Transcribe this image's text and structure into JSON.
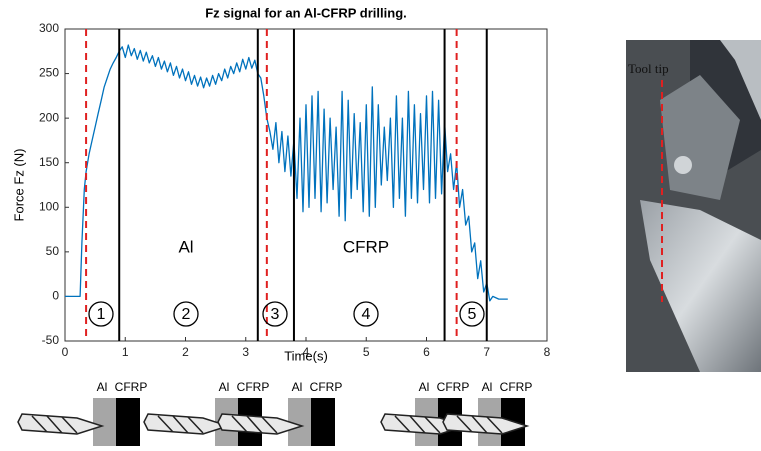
{
  "chart_data": {
    "type": "line",
    "title": "Fz signal for an Al-CFRP drilling.",
    "x_label": "Time(s)",
    "y_label": "Force Fz (N)",
    "color": "#0072bd",
    "xlim": [
      0,
      8
    ],
    "ylim": [
      -50,
      300
    ],
    "xticks": [
      0,
      1,
      2,
      3,
      4,
      5,
      6,
      7,
      8
    ],
    "yticks": [
      -50,
      0,
      50,
      100,
      150,
      200,
      250,
      300
    ],
    "grid": false,
    "x": [
      0,
      0.1,
      0.2,
      0.25,
      0.28,
      0.32,
      0.35,
      0.4,
      0.45,
      0.5,
      0.55,
      0.6,
      0.65,
      0.7,
      0.75,
      0.8,
      0.85,
      0.9,
      0.95,
      1.0,
      1.05,
      1.1,
      1.15,
      1.2,
      1.25,
      1.3,
      1.35,
      1.4,
      1.45,
      1.5,
      1.55,
      1.6,
      1.65,
      1.7,
      1.75,
      1.8,
      1.85,
      1.9,
      1.95,
      2.0,
      2.05,
      2.1,
      2.15,
      2.2,
      2.25,
      2.3,
      2.35,
      2.4,
      2.45,
      2.5,
      2.55,
      2.6,
      2.65,
      2.7,
      2.75,
      2.8,
      2.85,
      2.9,
      2.95,
      3.0,
      3.05,
      3.1,
      3.15,
      3.2,
      3.25,
      3.3,
      3.35,
      3.4,
      3.45,
      3.5,
      3.55,
      3.6,
      3.65,
      3.7,
      3.75,
      3.8,
      3.85,
      3.9,
      3.95,
      4.0,
      4.05,
      4.1,
      4.15,
      4.2,
      4.25,
      4.3,
      4.35,
      4.4,
      4.45,
      4.5,
      4.55,
      4.6,
      4.65,
      4.7,
      4.75,
      4.8,
      4.85,
      4.9,
      4.95,
      5.0,
      5.05,
      5.1,
      5.15,
      5.2,
      5.25,
      5.3,
      5.35,
      5.4,
      5.45,
      5.5,
      5.55,
      5.6,
      5.65,
      5.7,
      5.75,
      5.8,
      5.85,
      5.9,
      5.95,
      6.0,
      6.05,
      6.1,
      6.15,
      6.2,
      6.25,
      6.3,
      6.35,
      6.4,
      6.45,
      6.5,
      6.55,
      6.6,
      6.65,
      6.7,
      6.75,
      6.8,
      6.85,
      6.9,
      6.95,
      7.0,
      7.05,
      7.1,
      7.2,
      7.35
    ],
    "values": [
      0,
      0,
      0,
      0,
      60,
      120,
      140,
      160,
      175,
      190,
      205,
      220,
      235,
      245,
      255,
      262,
      268,
      275,
      280,
      268,
      282,
      270,
      278,
      266,
      276,
      264,
      274,
      262,
      270,
      258,
      268,
      255,
      264,
      252,
      262,
      248,
      258,
      245,
      255,
      242,
      252,
      238,
      248,
      236,
      246,
      234,
      245,
      236,
      248,
      238,
      250,
      242,
      255,
      245,
      258,
      250,
      262,
      252,
      266,
      255,
      268,
      256,
      265,
      250,
      245,
      225,
      200,
      185,
      165,
      195,
      150,
      185,
      140,
      180,
      135,
      175,
      110,
      200,
      95,
      215,
      100,
      225,
      110,
      230,
      95,
      210,
      105,
      200,
      120,
      190,
      90,
      230,
      85,
      220,
      110,
      205,
      120,
      195,
      95,
      215,
      90,
      235,
      100,
      215,
      125,
      190,
      130,
      200,
      100,
      225,
      110,
      200,
      90,
      230,
      110,
      215,
      105,
      205,
      120,
      225,
      105,
      230,
      110,
      220,
      115,
      195,
      140,
      160,
      120,
      150,
      100,
      120,
      80,
      90,
      50,
      60,
      20,
      40,
      5,
      15,
      -5,
      0,
      -3,
      -3
    ],
    "red_lines": [
      0.35,
      3.35,
      6.5
    ],
    "black_lines": [
      0.9,
      3.2,
      3.8,
      6.3,
      7.0
    ],
    "regions": [
      "1",
      "2",
      "3",
      "4",
      "5"
    ],
    "material_labels": [
      "Al",
      "CFRP"
    ]
  },
  "diagrams": [
    [
      "Al",
      "CFRP"
    ],
    [
      "Al",
      "CFRP"
    ],
    [
      "Al",
      "CFRP"
    ],
    [
      "Al",
      "CFRP"
    ],
    [
      "Al",
      "CFRP"
    ]
  ],
  "photo_label": "Tool tip"
}
